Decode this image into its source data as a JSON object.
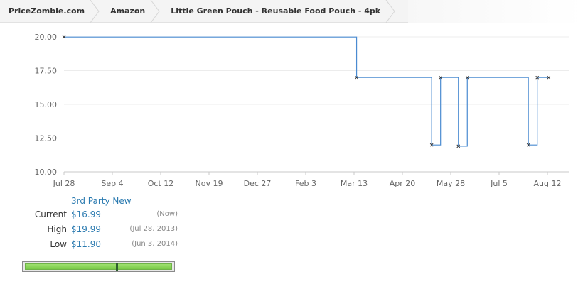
{
  "breadcrumb": [
    {
      "label": "PriceZombie.com"
    },
    {
      "label": "Amazon"
    },
    {
      "label": "Little Green Pouch - Reusable Food Pouch - 4pk"
    }
  ],
  "chart_data": {
    "type": "line",
    "line_color": "#4a8bd1",
    "y_ticks": [
      "20.00",
      "17.50",
      "15.00",
      "12.50",
      "10.00"
    ],
    "ylim": [
      10,
      20
    ],
    "x_ticks": [
      "Jul 28",
      "Sep 4",
      "Oct 12",
      "Nov 19",
      "Dec 27",
      "Feb 3",
      "Mar 13",
      "Apr 20",
      "May 28",
      "Jul 5",
      "Aug 12"
    ],
    "x_tick_dates": [
      "2013-07-28",
      "2013-09-04",
      "2013-10-12",
      "2013-11-19",
      "2013-12-27",
      "2014-02-03",
      "2014-03-13",
      "2014-04-20",
      "2014-05-28",
      "2014-07-05",
      "2014-08-12"
    ],
    "series": [
      {
        "points": [
          {
            "x": "2013-07-28",
            "y": 19.99
          },
          {
            "x": "2014-03-15",
            "y": 16.99
          },
          {
            "x": "2014-05-13",
            "y": 11.99
          },
          {
            "x": "2014-05-20",
            "y": 16.99
          },
          {
            "x": "2014-06-03",
            "y": 11.9
          },
          {
            "x": "2014-06-10",
            "y": 16.99
          },
          {
            "x": "2014-07-28",
            "y": 11.99
          },
          {
            "x": "2014-08-04",
            "y": 16.99
          },
          {
            "x": "2014-08-13",
            "y": 16.99
          }
        ]
      }
    ]
  },
  "summary": {
    "series_name": "3rd Party New",
    "rows": [
      {
        "label": "Current",
        "value": "$16.99",
        "date": "(Now)"
      },
      {
        "label": "High",
        "value": "$19.99",
        "date": "(Jul 28, 2013)"
      },
      {
        "label": "Low",
        "value": "$11.90",
        "date": "(Jun 3, 2014)"
      }
    ]
  },
  "range_selector": {
    "handle_position": 0.62
  }
}
